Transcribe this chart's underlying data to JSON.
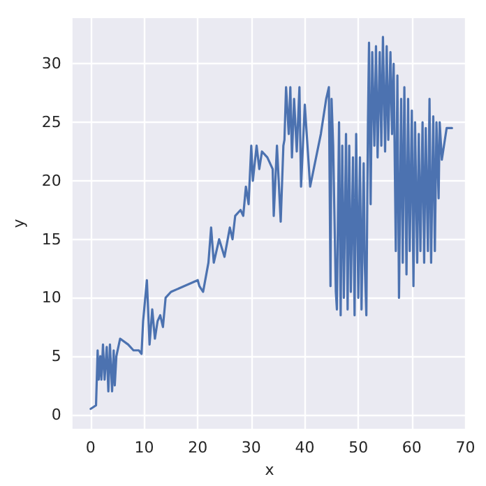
{
  "chart_data": {
    "type": "line",
    "xlabel": "x",
    "ylabel": "y",
    "xlim": [
      -3.4,
      70.2
    ],
    "xticks": [
      0,
      10,
      20,
      30,
      40,
      50,
      60,
      70
    ],
    "ylim": [
      -1.2,
      33.9
    ],
    "yticks": [
      0,
      5,
      10,
      15,
      20,
      25,
      30
    ],
    "grid": true,
    "marker": "none",
    "line_style": "solid",
    "series": [
      {
        "color": "#4c72b0",
        "x": [
          0,
          1,
          1.3,
          1.5,
          1.8,
          2,
          2.3,
          2.6,
          3,
          3.3,
          3.6,
          4,
          4.3,
          4.5,
          4.8,
          5.5,
          7,
          8,
          9,
          9.5,
          9.8,
          10.5,
          11,
          11.5,
          12,
          12.5,
          13,
          13.5,
          14,
          15,
          20,
          20.3,
          21,
          22,
          22.5,
          23,
          24,
          25,
          26,
          26.5,
          27,
          28,
          28.5,
          29,
          29.5,
          30,
          30.3,
          31,
          31.5,
          32,
          33,
          34,
          34.2,
          34.8,
          35.5,
          36,
          36.2,
          36.5,
          37,
          37.3,
          37.6,
          38,
          38.5,
          39,
          39.3,
          40,
          41,
          43,
          44,
          44.5,
          44.8,
          45,
          45.3,
          45.8,
          46,
          46.4,
          46.7,
          47,
          47.3,
          47.7,
          48,
          48.3,
          48.6,
          49,
          49.3,
          49.6,
          50,
          50.3,
          50.6,
          51,
          51.2,
          51.5,
          51.8,
          52,
          52.3,
          52.6,
          53,
          53.3,
          53.6,
          54,
          54.3,
          54.6,
          55,
          55.3,
          55.6,
          56,
          56.3,
          56.6,
          57,
          57.3,
          57.6,
          58,
          58.3,
          58.6,
          59,
          59.3,
          59.6,
          60,
          60.3,
          60.6,
          61,
          61.3,
          61.6,
          62,
          62.3,
          62.6,
          63,
          63.3,
          63.6,
          64,
          64.3,
          64.6,
          65,
          65.2,
          65.6,
          66.5,
          67.5
        ],
        "values": [
          0.5,
          0.8,
          5.5,
          3,
          5,
          3,
          6,
          3,
          5.8,
          2,
          6,
          2,
          5.5,
          2.5,
          5,
          6.5,
          6,
          5.5,
          5.5,
          5.2,
          8,
          11.5,
          6,
          9,
          6.5,
          8,
          8.5,
          7.5,
          10,
          10.5,
          11.5,
          11,
          10.5,
          13,
          16,
          13,
          15,
          13.5,
          16,
          15,
          17,
          17.5,
          17,
          19.5,
          18,
          23,
          20,
          23,
          21,
          22.5,
          22,
          21,
          17,
          23,
          16.5,
          23,
          23.5,
          28,
          24,
          28,
          22,
          27,
          22.5,
          28,
          19.5,
          26.5,
          19.5,
          24,
          27,
          28,
          11,
          27,
          23,
          10.5,
          9,
          25,
          8.5,
          23,
          10,
          24,
          9,
          23,
          10.5,
          22,
          8.5,
          24,
          10,
          22,
          9,
          21.5,
          13,
          8.5,
          25,
          31.8,
          18,
          31,
          23,
          31.5,
          22,
          31,
          23,
          32.3,
          22.5,
          31.5,
          23.5,
          31,
          24,
          30,
          14,
          29,
          10,
          27,
          13,
          28,
          12,
          27,
          14,
          26,
          11,
          25,
          13,
          24,
          14,
          25,
          13,
          24.5,
          14,
          27,
          13,
          25.5,
          14,
          25,
          18.5,
          25,
          21.8,
          24.5,
          24.5
        ]
      }
    ]
  }
}
